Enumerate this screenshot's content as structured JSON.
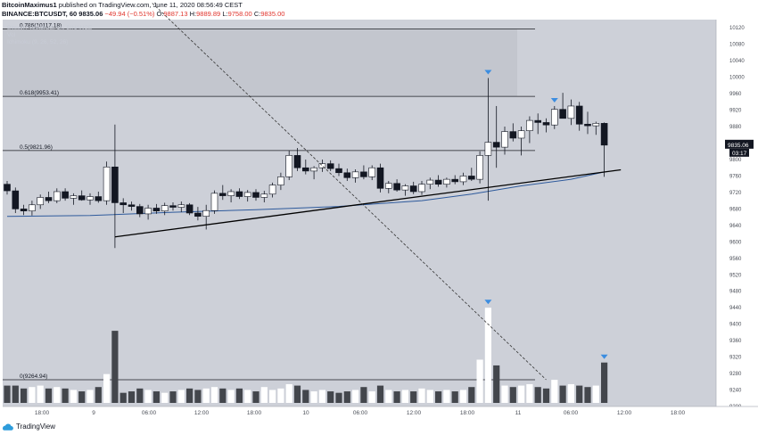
{
  "header": {
    "user": "BitcoinMaximus1",
    "published_text": "published on TradingView.com, June 11, 2020 08:56:49 CEST",
    "symbol": "BINANCE:BTCUSDT, 60",
    "last": "9835.06",
    "change": "−49.94 (−0.51%)",
    "o_label": "O:",
    "o": "9887.13",
    "h_label": "H:",
    "h": "9889.89",
    "l_label": "L:",
    "l": "9758.00",
    "c_label": "C:",
    "c": "9835.00"
  },
  "overlay": {
    "line1": "Bitcoin / TetherUS, 1h, BINANCE",
    "line2": "Vol",
    "line3": "Ichimoku (9, 26, 52, 26)"
  },
  "footer": {
    "brand": "TradingView"
  },
  "colors": {
    "bull": "#ffffff",
    "bear": "#131722",
    "volBull": "#ffffff",
    "volBear": "#43464c",
    "plotBg": "#cdd0d8",
    "ma": "#2e5a9c",
    "marker": "#3c8de0"
  },
  "chart_data": {
    "type": "candlestick",
    "y_axis": {
      "min": 9200,
      "max": 10140,
      "ticks": [
        10120,
        10080,
        10040,
        10000,
        9960,
        9920,
        9880,
        9840,
        9800,
        9760,
        9720,
        9680,
        9640,
        9600,
        9560,
        9520,
        9480,
        9440,
        9400,
        9360,
        9320,
        9280,
        9240,
        9200
      ],
      "price_label": "9835.06",
      "countdown_label": "03:17"
    },
    "x_axis": {
      "tick_labels": [
        "18:00",
        "9",
        "06:00",
        "12:00",
        "18:00",
        "10",
        "06:00",
        "12:00",
        "18:00",
        "11",
        "06:00",
        "12:00",
        "18:00"
      ]
    },
    "fib_levels": [
      {
        "label": "0.786(10117.18)",
        "value": 10117.18
      },
      {
        "label": "0.618(9953.41)",
        "value": 9953.41
      },
      {
        "label": "0.5(9821.96)",
        "value": 9821.96
      },
      {
        "label": "0(9264.94)",
        "value": 9264.94
      }
    ],
    "candles": [
      {
        "o": 9740,
        "h": 9748,
        "l": 9715,
        "c": 9724
      },
      {
        "o": 9724,
        "h": 9732,
        "l": 9670,
        "c": 9680
      },
      {
        "o": 9680,
        "h": 9690,
        "l": 9665,
        "c": 9675
      },
      {
        "o": 9675,
        "h": 9700,
        "l": 9664,
        "c": 9690
      },
      {
        "o": 9690,
        "h": 9715,
        "l": 9680,
        "c": 9708
      },
      {
        "o": 9708,
        "h": 9722,
        "l": 9694,
        "c": 9700
      },
      {
        "o": 9700,
        "h": 9730,
        "l": 9694,
        "c": 9722
      },
      {
        "o": 9722,
        "h": 9730,
        "l": 9700,
        "c": 9706
      },
      {
        "o": 9706,
        "h": 9718,
        "l": 9690,
        "c": 9712
      },
      {
        "o": 9712,
        "h": 9725,
        "l": 9700,
        "c": 9702
      },
      {
        "o": 9702,
        "h": 9718,
        "l": 9690,
        "c": 9710
      },
      {
        "o": 9710,
        "h": 9722,
        "l": 9695,
        "c": 9700
      },
      {
        "o": 9700,
        "h": 9795,
        "l": 9690,
        "c": 9782
      },
      {
        "o": 9782,
        "h": 9885,
        "l": 9585,
        "c": 9695
      },
      {
        "o": 9695,
        "h": 9706,
        "l": 9670,
        "c": 9690
      },
      {
        "o": 9690,
        "h": 9698,
        "l": 9676,
        "c": 9686
      },
      {
        "o": 9686,
        "h": 9692,
        "l": 9660,
        "c": 9668
      },
      {
        "o": 9668,
        "h": 9690,
        "l": 9654,
        "c": 9682
      },
      {
        "o": 9682,
        "h": 9692,
        "l": 9668,
        "c": 9675
      },
      {
        "o": 9675,
        "h": 9695,
        "l": 9665,
        "c": 9688
      },
      {
        "o": 9688,
        "h": 9696,
        "l": 9676,
        "c": 9684
      },
      {
        "o": 9684,
        "h": 9698,
        "l": 9672,
        "c": 9690
      },
      {
        "o": 9690,
        "h": 9694,
        "l": 9665,
        "c": 9670
      },
      {
        "o": 9670,
        "h": 9685,
        "l": 9652,
        "c": 9662
      },
      {
        "o": 9662,
        "h": 9690,
        "l": 9630,
        "c": 9676
      },
      {
        "o": 9676,
        "h": 9725,
        "l": 9668,
        "c": 9718
      },
      {
        "o": 9718,
        "h": 9738,
        "l": 9702,
        "c": 9712
      },
      {
        "o": 9712,
        "h": 9728,
        "l": 9696,
        "c": 9722
      },
      {
        "o": 9722,
        "h": 9730,
        "l": 9704,
        "c": 9710
      },
      {
        "o": 9710,
        "h": 9726,
        "l": 9698,
        "c": 9720
      },
      {
        "o": 9720,
        "h": 9728,
        "l": 9700,
        "c": 9708
      },
      {
        "o": 9708,
        "h": 9724,
        "l": 9696,
        "c": 9716
      },
      {
        "o": 9716,
        "h": 9744,
        "l": 9708,
        "c": 9738
      },
      {
        "o": 9738,
        "h": 9768,
        "l": 9726,
        "c": 9758
      },
      {
        "o": 9758,
        "h": 9822,
        "l": 9750,
        "c": 9810
      },
      {
        "o": 9810,
        "h": 9828,
        "l": 9772,
        "c": 9780
      },
      {
        "o": 9780,
        "h": 9800,
        "l": 9764,
        "c": 9772
      },
      {
        "o": 9772,
        "h": 9784,
        "l": 9752,
        "c": 9780
      },
      {
        "o": 9780,
        "h": 9800,
        "l": 9770,
        "c": 9790
      },
      {
        "o": 9790,
        "h": 9798,
        "l": 9772,
        "c": 9778
      },
      {
        "o": 9778,
        "h": 9790,
        "l": 9760,
        "c": 9768
      },
      {
        "o": 9768,
        "h": 9778,
        "l": 9748,
        "c": 9756
      },
      {
        "o": 9756,
        "h": 9776,
        "l": 9744,
        "c": 9770
      },
      {
        "o": 9770,
        "h": 9786,
        "l": 9752,
        "c": 9758
      },
      {
        "o": 9758,
        "h": 9786,
        "l": 9750,
        "c": 9780
      },
      {
        "o": 9780,
        "h": 9790,
        "l": 9720,
        "c": 9730
      },
      {
        "o": 9730,
        "h": 9748,
        "l": 9718,
        "c": 9742
      },
      {
        "o": 9742,
        "h": 9752,
        "l": 9722,
        "c": 9726
      },
      {
        "o": 9726,
        "h": 9740,
        "l": 9712,
        "c": 9736
      },
      {
        "o": 9736,
        "h": 9746,
        "l": 9716,
        "c": 9722
      },
      {
        "o": 9722,
        "h": 9748,
        "l": 9714,
        "c": 9740
      },
      {
        "o": 9740,
        "h": 9756,
        "l": 9728,
        "c": 9750
      },
      {
        "o": 9750,
        "h": 9762,
        "l": 9734,
        "c": 9740
      },
      {
        "o": 9740,
        "h": 9756,
        "l": 9732,
        "c": 9752
      },
      {
        "o": 9752,
        "h": 9762,
        "l": 9740,
        "c": 9746
      },
      {
        "o": 9746,
        "h": 9768,
        "l": 9738,
        "c": 9760
      },
      {
        "o": 9760,
        "h": 9780,
        "l": 9748,
        "c": 9752
      },
      {
        "o": 9752,
        "h": 9820,
        "l": 9742,
        "c": 9810
      },
      {
        "o": 9810,
        "h": 9998,
        "l": 9700,
        "c": 9842
      },
      {
        "o": 9842,
        "h": 9930,
        "l": 9780,
        "c": 9830
      },
      {
        "o": 9830,
        "h": 9880,
        "l": 9812,
        "c": 9868
      },
      {
        "o": 9868,
        "h": 9888,
        "l": 9844,
        "c": 9852
      },
      {
        "o": 9852,
        "h": 9880,
        "l": 9810,
        "c": 9870
      },
      {
        "o": 9870,
        "h": 9905,
        "l": 9840,
        "c": 9895
      },
      {
        "o": 9895,
        "h": 9912,
        "l": 9862,
        "c": 9890
      },
      {
        "o": 9890,
        "h": 9900,
        "l": 9866,
        "c": 9884
      },
      {
        "o": 9884,
        "h": 9930,
        "l": 9874,
        "c": 9922
      },
      {
        "o": 9922,
        "h": 9962,
        "l": 9900,
        "c": 9900
      },
      {
        "o": 9900,
        "h": 9946,
        "l": 9884,
        "c": 9930
      },
      {
        "o": 9930,
        "h": 9940,
        "l": 9870,
        "c": 9886
      },
      {
        "o": 9886,
        "h": 9916,
        "l": 9862,
        "c": 9882
      },
      {
        "o": 9882,
        "h": 9892,
        "l": 9860,
        "c": 9888
      },
      {
        "o": 9888,
        "h": 9890,
        "l": 9758,
        "c": 9835
      }
    ],
    "volumes": [
      60,
      60,
      50,
      55,
      60,
      50,
      55,
      50,
      45,
      40,
      45,
      55,
      100,
      250,
      35,
      40,
      50,
      45,
      40,
      35,
      40,
      45,
      50,
      45,
      50,
      55,
      50,
      45,
      50,
      45,
      40,
      55,
      45,
      50,
      65,
      60,
      45,
      40,
      45,
      40,
      35,
      40,
      45,
      55,
      40,
      60,
      45,
      40,
      45,
      40,
      50,
      45,
      40,
      45,
      40,
      45,
      55,
      150,
      330,
      130,
      60,
      55,
      60,
      65,
      55,
      50,
      80,
      60,
      65,
      60,
      55,
      60,
      140
    ],
    "ma_line": [
      [
        0,
        9662
      ],
      [
        10,
        9664
      ],
      [
        20,
        9672
      ],
      [
        30,
        9678
      ],
      [
        40,
        9686
      ],
      [
        50,
        9700
      ],
      [
        56,
        9716
      ],
      [
        62,
        9736
      ],
      [
        68,
        9752
      ],
      [
        72,
        9770
      ]
    ],
    "support_line": {
      "p1": [
        13,
        9612
      ],
      "p2": [
        74,
        9775
      ]
    },
    "dashed_line": {
      "p1": [
        17.5,
        10180
      ],
      "p2": [
        65,
        9264.94
      ]
    },
    "markers_high": [
      58,
      66
    ],
    "markers_vol": [
      58,
      72
    ]
  }
}
